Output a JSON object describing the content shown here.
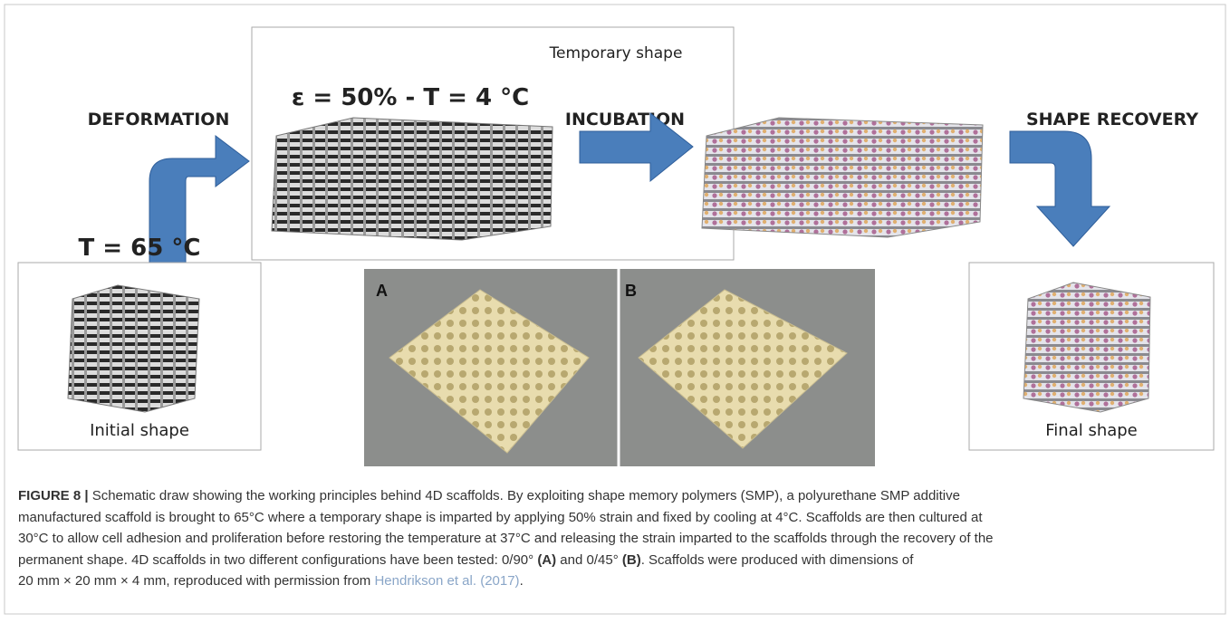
{
  "figure": {
    "labels": {
      "temporary_shape": "Temporary shape",
      "strain": "ε = 50% - T = 4 °C",
      "deformation": "DEFORMATION",
      "incubation": "INCUBATION",
      "shape_recovery": "SHAPE RECOVERY",
      "heat": "T = 65 °C",
      "initial_shape": "Initial shape",
      "final_shape": "Final shape",
      "photo_a": "A",
      "photo_b": "B"
    },
    "caption": {
      "lines": [
        [
          "FIGURE 8 |",
          " Schematic draw showing the working principles behind 4D scaffolds. By exploiting shape memory polymers (SMP), a polyurethane SMP additive"
        ],
        [
          "manufactured scaffold is brought to 65°C where a temporary shape is imparted by applying 50% strain and fixed by cooling at 4°C. Scaffolds are then cultured at"
        ],
        [
          "30°C to allow cell adhesion and proliferation before restoring the temperature at 37°C and releasing the strain imparted to the scaffolds through the recovery of the"
        ],
        [
          "permanent shape. 4D scaffolds in two different configurations have been tested: 0/90° ",
          "(A)",
          " and 0/45° ",
          "(B)",
          ". Scaffolds were produced with dimensions of"
        ],
        [
          "20 mm × 20 mm × 4 mm, reproduced with permission from ",
          "Hendrikson et al. (2017)",
          "."
        ]
      ]
    }
  }
}
